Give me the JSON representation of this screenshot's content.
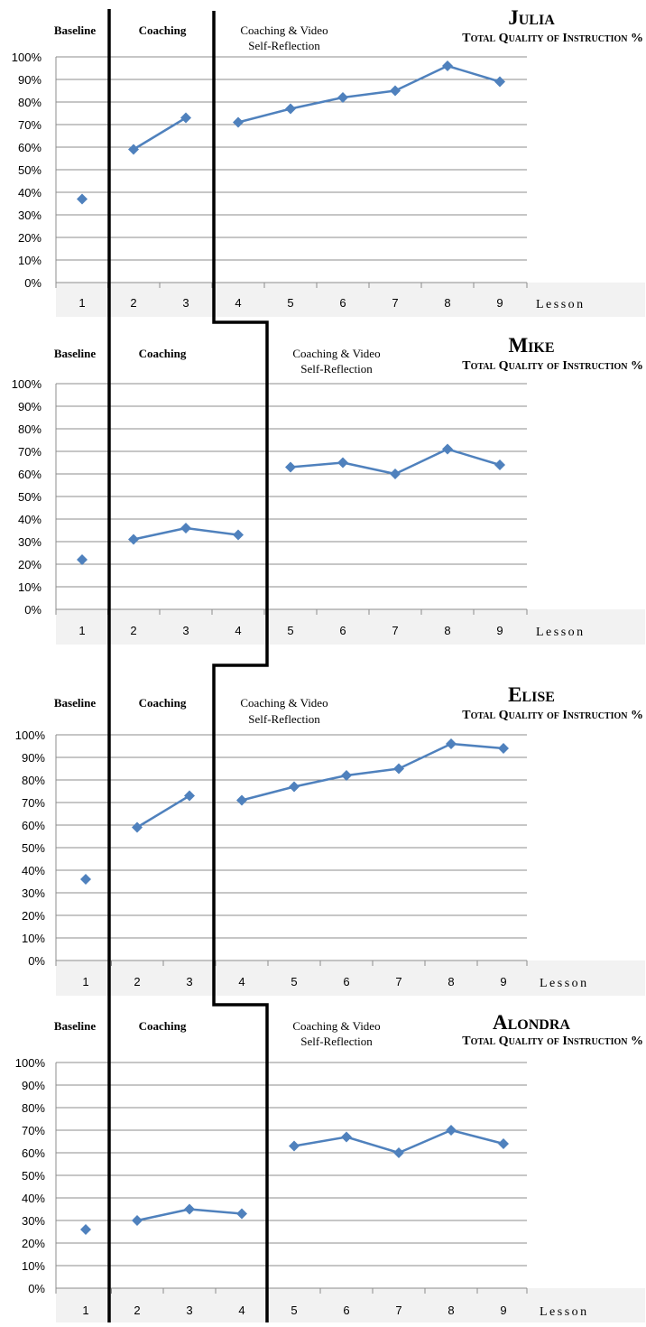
{
  "chart_data": [
    {
      "type": "line",
      "title": "Julia",
      "subtitle": "Total Quality of Instruction %",
      "xlabel": "Lesson",
      "ylabel": "",
      "categories": [
        "1",
        "2",
        "3",
        "4",
        "5",
        "6",
        "7",
        "8",
        "9"
      ],
      "y_ticks": [
        "0%",
        "10%",
        "20%",
        "30%",
        "40%",
        "50%",
        "60%",
        "70%",
        "80%",
        "90%",
        "100%"
      ],
      "ylim": [
        0,
        100
      ],
      "phases": [
        {
          "label": [
            "Baseline"
          ],
          "lessons": [
            1
          ]
        },
        {
          "label": [
            "Coaching"
          ],
          "lessons": [
            2,
            3
          ]
        },
        {
          "label": [
            "Coaching & Video",
            "Self-Reflection"
          ],
          "lessons": [
            4,
            5,
            6,
            7,
            8,
            9
          ]
        }
      ],
      "series": [
        {
          "segments": [
            [
              1
            ],
            [
              2,
              3
            ],
            [
              4,
              5,
              6,
              7,
              8,
              9
            ]
          ],
          "values": [
            37,
            59,
            73,
            71,
            77,
            82,
            85,
            96,
            89
          ]
        }
      ],
      "grid": true,
      "marker": "diamond",
      "color": "#4f81bd"
    },
    {
      "type": "line",
      "title": "Mike",
      "subtitle": "Total Quality of Instruction %",
      "xlabel": "Lesson",
      "ylabel": "",
      "categories": [
        "1",
        "2",
        "3",
        "4",
        "5",
        "6",
        "7",
        "8",
        "9"
      ],
      "y_ticks": [
        "0%",
        "10%",
        "20%",
        "30%",
        "40%",
        "50%",
        "60%",
        "70%",
        "80%",
        "90%",
        "100%"
      ],
      "ylim": [
        0,
        100
      ],
      "phases": [
        {
          "label": [
            "Baseline"
          ],
          "lessons": [
            1
          ]
        },
        {
          "label": [
            "Coaching"
          ],
          "lessons": [
            2,
            3,
            4
          ]
        },
        {
          "label": [
            "Coaching & Video",
            "Self-Reflection"
          ],
          "lessons": [
            5,
            6,
            7,
            8,
            9
          ]
        }
      ],
      "series": [
        {
          "segments": [
            [
              1
            ],
            [
              2,
              3,
              4
            ],
            [
              5,
              6,
              7,
              8,
              9
            ]
          ],
          "values": [
            22,
            31,
            36,
            33,
            63,
            65,
            60,
            71,
            64
          ]
        }
      ],
      "grid": true,
      "marker": "diamond",
      "color": "#4f81bd"
    },
    {
      "type": "line",
      "title": "Elise",
      "subtitle": "Total Quality of Instruction %",
      "xlabel": "Lesson",
      "ylabel": "",
      "categories": [
        "1",
        "2",
        "3",
        "4",
        "5",
        "6",
        "7",
        "8",
        "9"
      ],
      "y_ticks": [
        "0%",
        "10%",
        "20%",
        "30%",
        "40%",
        "50%",
        "60%",
        "70%",
        "80%",
        "90%",
        "100%"
      ],
      "ylim": [
        0,
        100
      ],
      "phases": [
        {
          "label": [
            "Baseline"
          ],
          "lessons": [
            1
          ]
        },
        {
          "label": [
            "Coaching"
          ],
          "lessons": [
            2,
            3
          ]
        },
        {
          "label": [
            "Coaching & Video",
            "Self-Reflection"
          ],
          "lessons": [
            4,
            5,
            6,
            7,
            8,
            9
          ]
        }
      ],
      "series": [
        {
          "segments": [
            [
              1
            ],
            [
              2,
              3
            ],
            [
              4,
              5,
              6,
              7,
              8,
              9
            ]
          ],
          "values": [
            36,
            59,
            73,
            71,
            77,
            82,
            85,
            96,
            94
          ]
        }
      ],
      "grid": true,
      "marker": "diamond",
      "color": "#4f81bd"
    },
    {
      "type": "line",
      "title": "Alondra",
      "subtitle": "Total Quality of Instruction %",
      "xlabel": "Lesson",
      "ylabel": "",
      "categories": [
        "1",
        "2",
        "3",
        "4",
        "5",
        "6",
        "7",
        "8",
        "9"
      ],
      "y_ticks": [
        "0%",
        "10%",
        "20%",
        "30%",
        "40%",
        "50%",
        "60%",
        "70%",
        "80%",
        "90%",
        "100%"
      ],
      "ylim": [
        0,
        100
      ],
      "phases": [
        {
          "label": [
            "Baseline"
          ],
          "lessons": [
            1
          ]
        },
        {
          "label": [
            "Coaching"
          ],
          "lessons": [
            2,
            3,
            4
          ]
        },
        {
          "label": [
            "Coaching & Video",
            "Self-Reflection"
          ],
          "lessons": [
            5,
            6,
            7,
            8,
            9
          ]
        }
      ],
      "series": [
        {
          "segments": [
            [
              1
            ],
            [
              2,
              3,
              4
            ],
            [
              5,
              6,
              7,
              8,
              9
            ]
          ],
          "values": [
            26,
            30,
            35,
            33,
            63,
            67,
            60,
            70,
            64
          ]
        }
      ],
      "grid": true,
      "marker": "diamond",
      "color": "#4f81bd"
    }
  ]
}
